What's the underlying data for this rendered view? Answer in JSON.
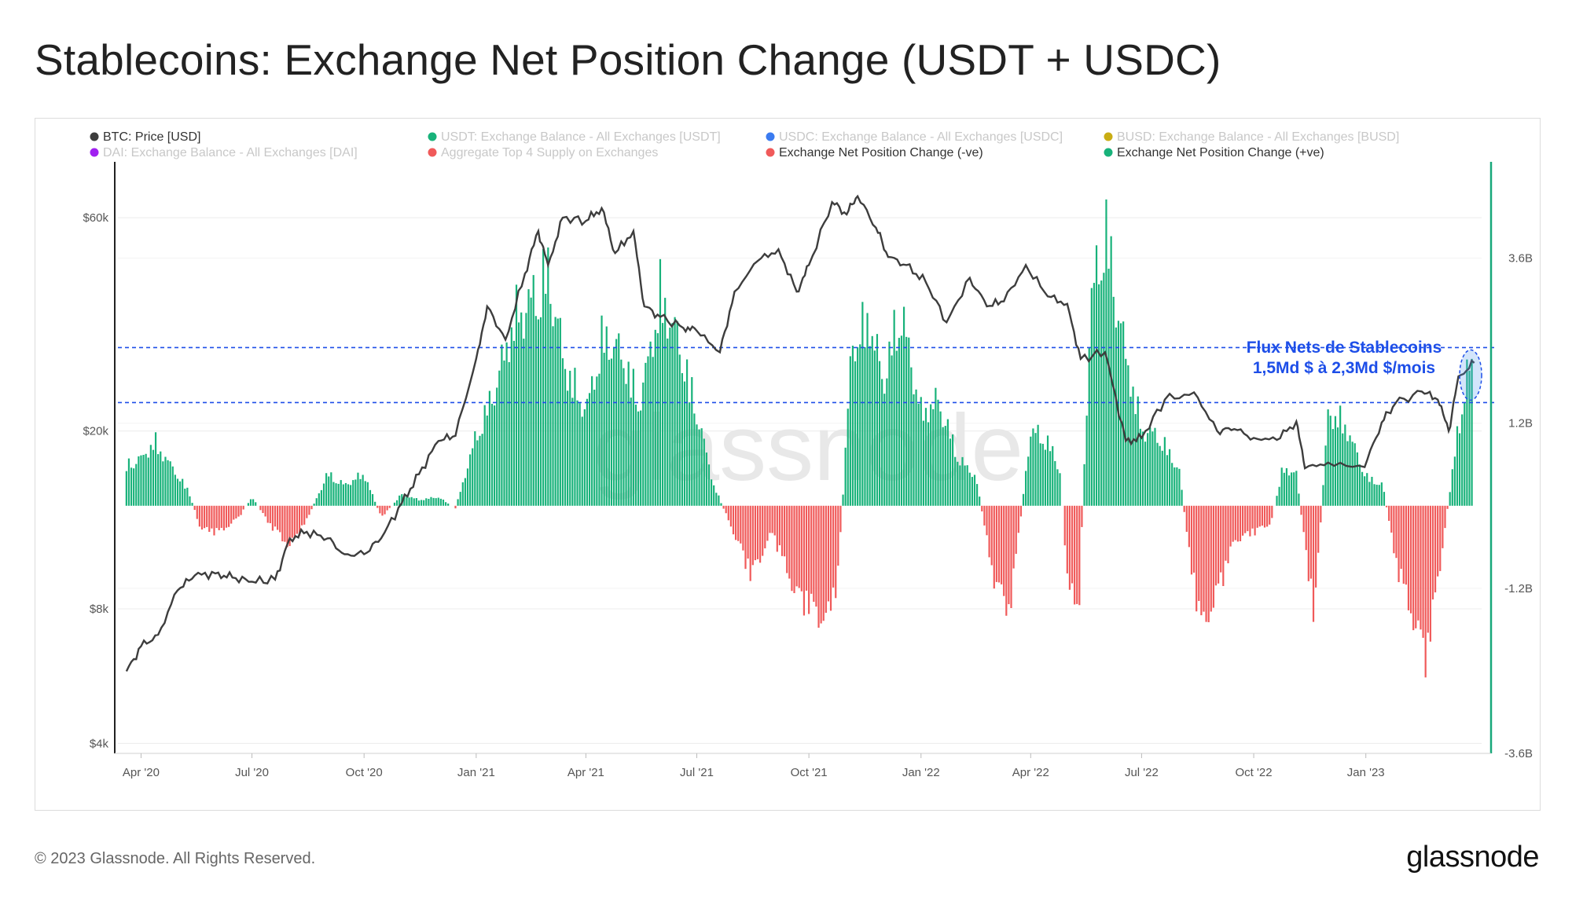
{
  "header": {
    "title": "Stablecoins: Exchange Net Position Change (USDT + USDC)"
  },
  "footer": {
    "copyright": "© 2023 Glassnode. All Rights Reserved.",
    "logo": "glassnode"
  },
  "watermark": "glassnode",
  "colors": {
    "price": "#3d3d3d",
    "positive": "#18b27a",
    "negative": "#f05a5a",
    "annotation": "#1d4ee8",
    "axis_right": "#18a87a",
    "legend_inactive": "#c8c8c8"
  },
  "legend": [
    {
      "label": "BTC: Price [USD]",
      "color": "#3d3d3d",
      "active": true
    },
    {
      "label": "USDT: Exchange Balance - All Exchanges [USDT]",
      "color": "#18b27a",
      "active": false
    },
    {
      "label": "USDC: Exchange Balance - All Exchanges [USDC]",
      "color": "#3b7bf0",
      "active": false
    },
    {
      "label": "BUSD: Exchange Balance - All Exchanges [BUSD]",
      "color": "#c9ad14",
      "active": false
    },
    {
      "label": "DAI: Exchange Balance - All Exchanges [DAI]",
      "color": "#a020f0",
      "active": false
    },
    {
      "label": "Aggregate Top 4 Supply on Exchanges",
      "color": "#f05a5a",
      "active": false
    },
    {
      "label": "Exchange Net Position Change (-ve)",
      "color": "#f05a5a",
      "active": true
    },
    {
      "label": "Exchange Net Position Change (+ve)",
      "color": "#18b27a",
      "active": true
    }
  ],
  "annotation": {
    "line1": "Flux Nets de Stablecoins",
    "line2": "1,5Md $ à 2,3Md $/mois",
    "band_low": 1.5,
    "band_high": 2.3
  },
  "chart_data": {
    "type": "bar",
    "x_ticks": [
      "Apr '20",
      "Jul '20",
      "Oct '20",
      "Jan '21",
      "Apr '21",
      "Jul '21",
      "Oct '21",
      "Jan '22",
      "Apr '22",
      "Jul '22",
      "Oct '22",
      "Jan '23"
    ],
    "y_left": {
      "scale": "log",
      "ticks": [
        "$4k",
        "$8k",
        "$20k",
        "$60k"
      ],
      "tick_values": [
        4000,
        8000,
        20000,
        60000
      ],
      "range": [
        3800,
        80000
      ]
    },
    "y_right": {
      "ticks": [
        "-3.6B",
        "-1.2B",
        "1.2B",
        "3.6B"
      ],
      "tick_values": [
        -3.6,
        -1.2,
        1.2,
        3.6
      ],
      "range": [
        -3.6,
        5.0
      ]
    },
    "series": [
      {
        "name": "BTC: Price [USD]",
        "type": "line",
        "points": [
          [
            "2020-03-20",
            5800
          ],
          [
            "2020-04-01",
            6600
          ],
          [
            "2020-04-15",
            7000
          ],
          [
            "2020-05-01",
            8800
          ],
          [
            "2020-05-15",
            9500
          ],
          [
            "2020-06-01",
            9600
          ],
          [
            "2020-06-15",
            9400
          ],
          [
            "2020-07-01",
            9200
          ],
          [
            "2020-07-20",
            9300
          ],
          [
            "2020-08-01",
            11500
          ],
          [
            "2020-08-15",
            11900
          ],
          [
            "2020-09-01",
            11500
          ],
          [
            "2020-09-15",
            10600
          ],
          [
            "2020-10-01",
            10600
          ],
          [
            "2020-10-15",
            11500
          ],
          [
            "2020-11-01",
            13800
          ],
          [
            "2020-11-15",
            16000
          ],
          [
            "2020-12-01",
            19000
          ],
          [
            "2020-12-15",
            19500
          ],
          [
            "2021-01-01",
            29000
          ],
          [
            "2021-01-10",
            38000
          ],
          [
            "2021-01-25",
            32000
          ],
          [
            "2021-02-10",
            45000
          ],
          [
            "2021-02-21",
            56000
          ],
          [
            "2021-03-01",
            47000
          ],
          [
            "2021-03-13",
            60000
          ],
          [
            "2021-04-01",
            59000
          ],
          [
            "2021-04-14",
            63000
          ],
          [
            "2021-04-25",
            50000
          ],
          [
            "2021-05-10",
            56000
          ],
          [
            "2021-05-19",
            38000
          ],
          [
            "2021-06-01",
            36000
          ],
          [
            "2021-06-20",
            34000
          ],
          [
            "2021-07-01",
            33500
          ],
          [
            "2021-07-20",
            30000
          ],
          [
            "2021-08-01",
            41000
          ],
          [
            "2021-08-20",
            48000
          ],
          [
            "2021-09-06",
            51000
          ],
          [
            "2021-09-21",
            41000
          ],
          [
            "2021-10-01",
            47000
          ],
          [
            "2021-10-20",
            65000
          ],
          [
            "2021-11-01",
            61000
          ],
          [
            "2021-11-10",
            67000
          ],
          [
            "2021-11-25",
            57000
          ],
          [
            "2021-12-05",
            49000
          ],
          [
            "2021-12-20",
            47000
          ],
          [
            "2022-01-05",
            43000
          ],
          [
            "2022-01-22",
            35000
          ],
          [
            "2022-02-10",
            44000
          ],
          [
            "2022-02-24",
            38000
          ],
          [
            "2022-03-10",
            39000
          ],
          [
            "2022-03-28",
            47000
          ],
          [
            "2022-04-15",
            40000
          ],
          [
            "2022-05-01",
            38500
          ],
          [
            "2022-05-12",
            29000
          ],
          [
            "2022-06-01",
            30000
          ],
          [
            "2022-06-18",
            19000
          ],
          [
            "2022-07-01",
            19300
          ],
          [
            "2022-07-20",
            23500
          ],
          [
            "2022-08-13",
            24400
          ],
          [
            "2022-09-01",
            20000
          ],
          [
            "2022-09-15",
            20200
          ],
          [
            "2022-10-01",
            19300
          ],
          [
            "2022-10-20",
            19100
          ],
          [
            "2022-11-05",
            21000
          ],
          [
            "2022-11-12",
            16500
          ],
          [
            "2022-12-01",
            17000
          ],
          [
            "2022-12-31",
            16600
          ],
          [
            "2023-01-14",
            20900
          ],
          [
            "2023-01-25",
            23000
          ],
          [
            "2023-02-16",
            24500
          ],
          [
            "2023-03-01",
            23500
          ],
          [
            "2023-03-10",
            20000
          ],
          [
            "2023-03-18",
            26500
          ],
          [
            "2023-03-31",
            28400
          ]
        ]
      },
      {
        "name": "Exchange Net Position Change",
        "type": "bar",
        "unit": "B",
        "points": [
          [
            "2020-03-20",
            0.7
          ],
          [
            "2020-04-01",
            0.8
          ],
          [
            "2020-04-12",
            1.1
          ],
          [
            "2020-04-25",
            0.7
          ],
          [
            "2020-05-10",
            0.25
          ],
          [
            "2020-05-20",
            -0.4
          ],
          [
            "2020-06-05",
            -0.45
          ],
          [
            "2020-06-20",
            -0.2
          ],
          [
            "2020-07-01",
            0.15
          ],
          [
            "2020-07-15",
            -0.3
          ],
          [
            "2020-08-01",
            -0.7
          ],
          [
            "2020-08-15",
            -0.25
          ],
          [
            "2020-09-01",
            0.55
          ],
          [
            "2020-09-15",
            0.35
          ],
          [
            "2020-10-01",
            0.55
          ],
          [
            "2020-10-15",
            -0.2
          ],
          [
            "2020-11-01",
            0.2
          ],
          [
            "2020-11-15",
            0.1
          ],
          [
            "2020-12-01",
            0.15
          ],
          [
            "2020-12-15",
            -0.05
          ],
          [
            "2021-01-01",
            1.2
          ],
          [
            "2021-01-15",
            1.9
          ],
          [
            "2021-02-01",
            3.2
          ],
          [
            "2021-02-15",
            3.5
          ],
          [
            "2021-03-01",
            4.0
          ],
          [
            "2021-03-15",
            2.4
          ],
          [
            "2021-04-01",
            1.6
          ],
          [
            "2021-04-15",
            2.9
          ],
          [
            "2021-05-01",
            2.6
          ],
          [
            "2021-05-15",
            1.7
          ],
          [
            "2021-06-01",
            3.6
          ],
          [
            "2021-06-15",
            2.9
          ],
          [
            "2021-07-01",
            1.6
          ],
          [
            "2021-07-15",
            0.35
          ],
          [
            "2021-08-01",
            -0.5
          ],
          [
            "2021-08-15",
            -1.2
          ],
          [
            "2021-09-01",
            -0.45
          ],
          [
            "2021-09-20",
            -1.5
          ],
          [
            "2021-10-01",
            -1.7
          ],
          [
            "2021-10-15",
            -2.0
          ],
          [
            "2021-10-25",
            -1.2
          ],
          [
            "2021-11-05",
            2.7
          ],
          [
            "2021-11-20",
            3.2
          ],
          [
            "2021-12-01",
            2.1
          ],
          [
            "2021-12-15",
            3.4
          ],
          [
            "2022-01-01",
            1.6
          ],
          [
            "2022-01-15",
            1.8
          ],
          [
            "2022-02-01",
            0.8
          ],
          [
            "2022-02-15",
            0.5
          ],
          [
            "2022-03-01",
            -1.2
          ],
          [
            "2022-03-15",
            -1.8
          ],
          [
            "2022-04-01",
            1.3
          ],
          [
            "2022-04-15",
            1.1
          ],
          [
            "2022-04-25",
            0.6
          ],
          [
            "2022-05-01",
            -1.2
          ],
          [
            "2022-05-10",
            -2.0
          ],
          [
            "2022-05-20",
            3.4
          ],
          [
            "2022-06-01",
            4.8
          ],
          [
            "2022-06-15",
            2.9
          ],
          [
            "2022-07-01",
            1.3
          ],
          [
            "2022-07-15",
            1.2
          ],
          [
            "2022-08-01",
            0.6
          ],
          [
            "2022-08-10",
            -1.0
          ],
          [
            "2022-08-20",
            -2.1
          ],
          [
            "2022-09-01",
            -1.5
          ],
          [
            "2022-09-15",
            -0.6
          ],
          [
            "2022-10-01",
            -0.45
          ],
          [
            "2022-10-15",
            -0.3
          ],
          [
            "2022-10-25",
            0.65
          ],
          [
            "2022-11-05",
            0.55
          ],
          [
            "2022-11-12",
            -0.7
          ],
          [
            "2022-11-20",
            -1.9
          ],
          [
            "2022-12-01",
            1.6
          ],
          [
            "2022-12-15",
            1.4
          ],
          [
            "2023-01-01",
            0.5
          ],
          [
            "2023-01-15",
            0.35
          ],
          [
            "2023-01-25",
            -0.9
          ],
          [
            "2023-02-05",
            -1.7
          ],
          [
            "2023-02-20",
            -2.6
          ],
          [
            "2023-03-05",
            -0.7
          ],
          [
            "2023-03-15",
            0.9
          ],
          [
            "2023-03-25",
            2.3
          ]
        ]
      }
    ],
    "grid": true,
    "legend_position": "top"
  }
}
